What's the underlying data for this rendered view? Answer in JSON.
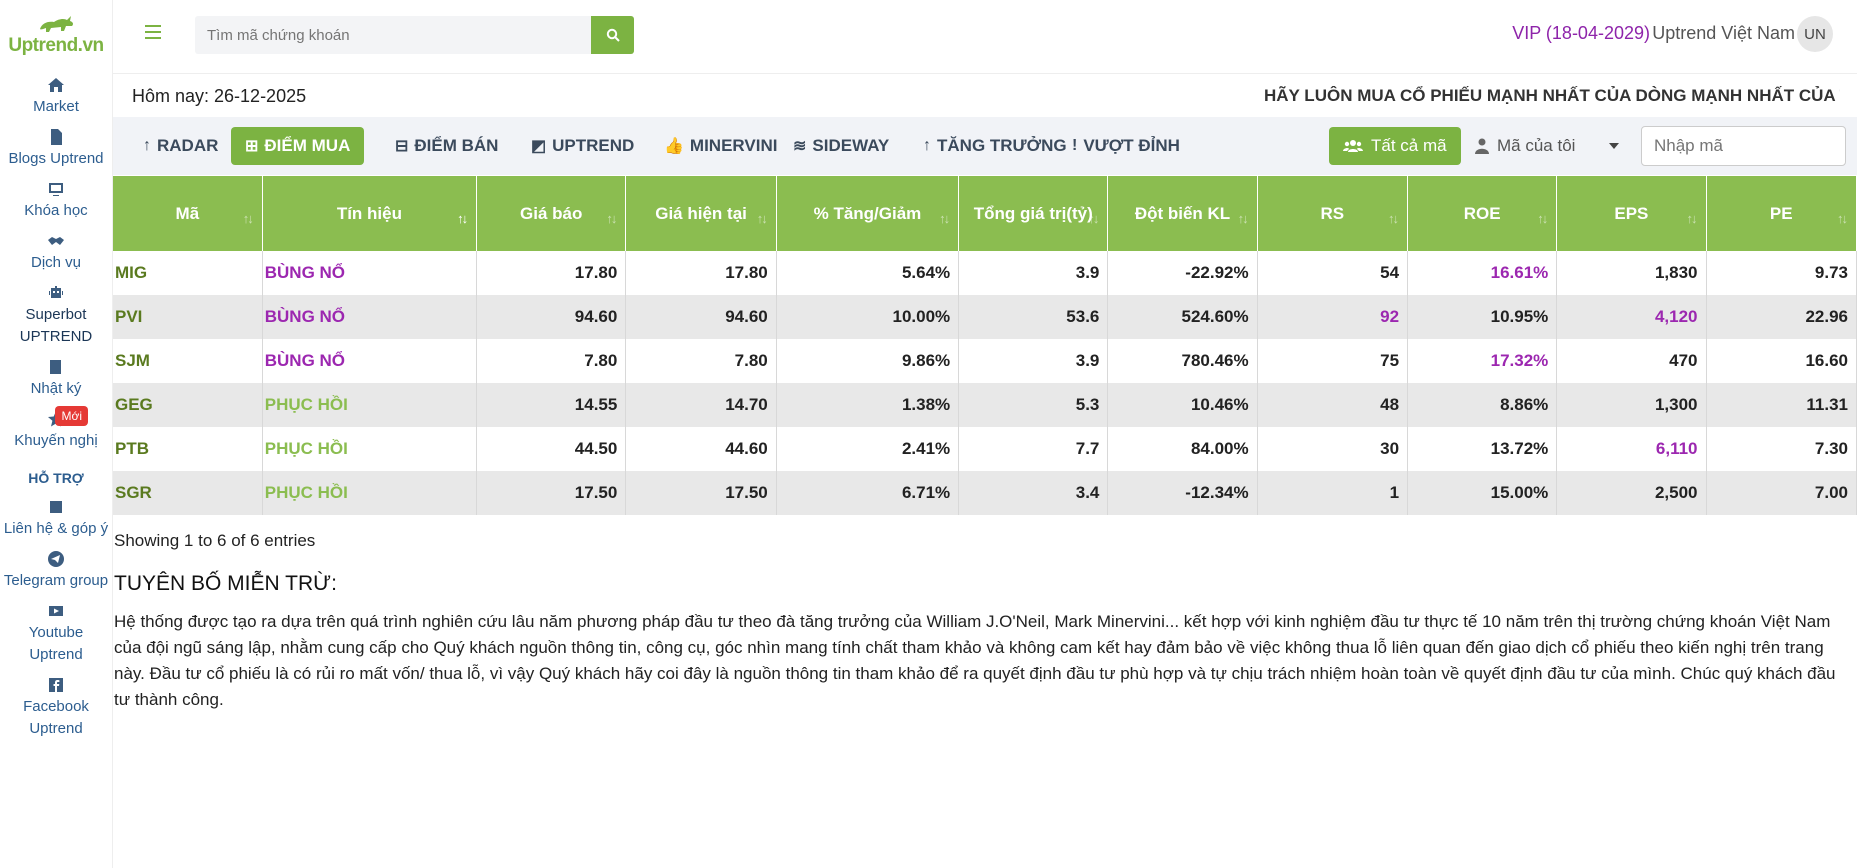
{
  "brand": {
    "logo_text": "Uptrend.vn",
    "accent": "#7cb342"
  },
  "sidebar": {
    "items": [
      {
        "label": "Market",
        "icon": "home-icon"
      },
      {
        "label": "Blogs Uptrend",
        "icon": "document-icon"
      },
      {
        "label": "Khóa học",
        "icon": "monitor-icon"
      },
      {
        "label": "Dịch vụ",
        "icon": "handshake-icon"
      },
      {
        "label": "Superbot UPTREND",
        "icon": "robot-icon"
      },
      {
        "label": "Nhật ký",
        "icon": "book-icon"
      },
      {
        "label": "Khuyến nghị",
        "icon": "star-icon",
        "badge": "Mới"
      }
    ],
    "support_heading": "HỖ TRỢ",
    "support_items": [
      {
        "label": "Liên hệ & góp ý",
        "icon": "edit-icon"
      },
      {
        "label": "Telegram group",
        "icon": "telegram-icon"
      },
      {
        "label": "Youtube Uptrend",
        "icon": "youtube-icon"
      },
      {
        "label": "Facebook Uptrend",
        "icon": "facebook-icon"
      }
    ]
  },
  "header": {
    "search_placeholder": "Tìm mã chứng khoán",
    "vip": "VIP (18-04-2029)",
    "user_name": "Uptrend Việt Nam",
    "avatar_initials": "UN"
  },
  "info": {
    "today": "Hôm nay: 26-12-2025",
    "marquee": "HÃY LUÔN MUA CỔ PHIẾU MẠNH NHẤT CỦA DÒNG MẠNH NHẤT CỦA TI"
  },
  "tabs": [
    {
      "label": "RADAR",
      "icon": "arrow-up-icon",
      "active": false
    },
    {
      "label": "ĐIỂM MUA",
      "icon": "plus-square-icon",
      "active": true
    },
    {
      "label": "ĐIỂM BÁN",
      "icon": "minus-square-icon",
      "active": false
    },
    {
      "label": "UPTREND",
      "icon": "chart-icon",
      "active": false
    },
    {
      "label": "MINERVINI",
      "icon": "thumbs-up-icon",
      "active": false
    },
    {
      "label": "SIDEWAY",
      "icon": "waves-icon",
      "active": false
    },
    {
      "label": "TĂNG TRƯỞNG",
      "icon": "arrow-up-icon",
      "active": false
    },
    {
      "label": "VƯỢT ĐỈNH",
      "icon": "exclamation-icon",
      "active": false
    }
  ],
  "filters": {
    "all_label": "Tất cả mã",
    "my_codes_label": "Mã của tôi",
    "code_input_placeholder": "Nhập mã"
  },
  "table": {
    "columns": [
      "Mã",
      "Tín hiệu",
      "Giá báo",
      "Giá hiện tại",
      "% Tăng/Giảm",
      "Tổng giá trị(tỷ)",
      "Đột biến KL",
      "RS",
      "ROE",
      "EPS",
      "PE"
    ],
    "rows": [
      {
        "code": "MIG",
        "signal": "BÙNG NỔ",
        "signal_type": "burst",
        "price_alert": "17.80",
        "price_now": "17.80",
        "change": "5.64%",
        "value": "3.9",
        "vol_spike": "-22.92%",
        "rs": "54",
        "roe": "16.61%",
        "eps": "1,830",
        "pe": "9.73",
        "hl": [
          "roe"
        ]
      },
      {
        "code": "PVI",
        "signal": "BÙNG NỔ",
        "signal_type": "burst",
        "price_alert": "94.60",
        "price_now": "94.60",
        "change": "10.00%",
        "value": "53.6",
        "vol_spike": "524.60%",
        "rs": "92",
        "roe": "10.95%",
        "eps": "4,120",
        "pe": "22.96",
        "hl": [
          "rs",
          "eps"
        ]
      },
      {
        "code": "SJM",
        "signal": "BÙNG NỔ",
        "signal_type": "burst",
        "price_alert": "7.80",
        "price_now": "7.80",
        "change": "9.86%",
        "value": "3.9",
        "vol_spike": "780.46%",
        "rs": "75",
        "roe": "17.32%",
        "eps": "470",
        "pe": "16.60",
        "hl": [
          "roe"
        ]
      },
      {
        "code": "GEG",
        "signal": "PHỤC HỒI",
        "signal_type": "recover",
        "price_alert": "14.55",
        "price_now": "14.70",
        "change": "1.38%",
        "value": "5.3",
        "vol_spike": "10.46%",
        "rs": "48",
        "roe": "8.86%",
        "eps": "1,300",
        "pe": "11.31",
        "hl": []
      },
      {
        "code": "PTB",
        "signal": "PHỤC HỒI",
        "signal_type": "recover",
        "price_alert": "44.50",
        "price_now": "44.60",
        "change": "2.41%",
        "value": "7.7",
        "vol_spike": "84.00%",
        "rs": "30",
        "roe": "13.72%",
        "eps": "6,110",
        "pe": "7.30",
        "hl": [
          "eps"
        ]
      },
      {
        "code": "SGR",
        "signal": "PHỤC HỒI",
        "signal_type": "recover",
        "price_alert": "17.50",
        "price_now": "17.50",
        "change": "6.71%",
        "value": "3.4",
        "vol_spike": "-12.34%",
        "rs": "1",
        "roe": "15.00%",
        "eps": "2,500",
        "pe": "7.00",
        "hl": []
      }
    ],
    "showing": "Showing 1 to 6 of 6 entries"
  },
  "disclaimer": {
    "title": "TUYÊN BỐ MIỄN TRỪ:",
    "body": "Hệ thống được tạo ra dựa trên quá trình nghiên cứu lâu năm phương pháp đầu tư theo đà tăng trưởng của William J.O'Neil, Mark Minervini... kết hợp với kinh nghiệm đầu tư thực tế 10 năm trên thị trường chứng khoán Việt Nam của đội ngũ sáng lập, nhằm cung cấp cho Quý khách nguồn thông tin, công cụ, góc nhìn mang tính chất tham khảo và không cam kết hay đảm bảo về việc không thua lỗ liên quan đến giao dịch cổ phiếu theo kiến nghị trên trang này. Đầu tư cổ phiếu là có rủi ro mất vốn/ thua lỗ, vì vậy Quý khách hãy coi đây là nguồn thông tin tham khảo để ra quyết định đầu tư phù hợp và tự chịu trách nhiệm hoàn toàn về quyết định đầu tư của mình. Chúc quý khách đầu tư thành công."
  }
}
